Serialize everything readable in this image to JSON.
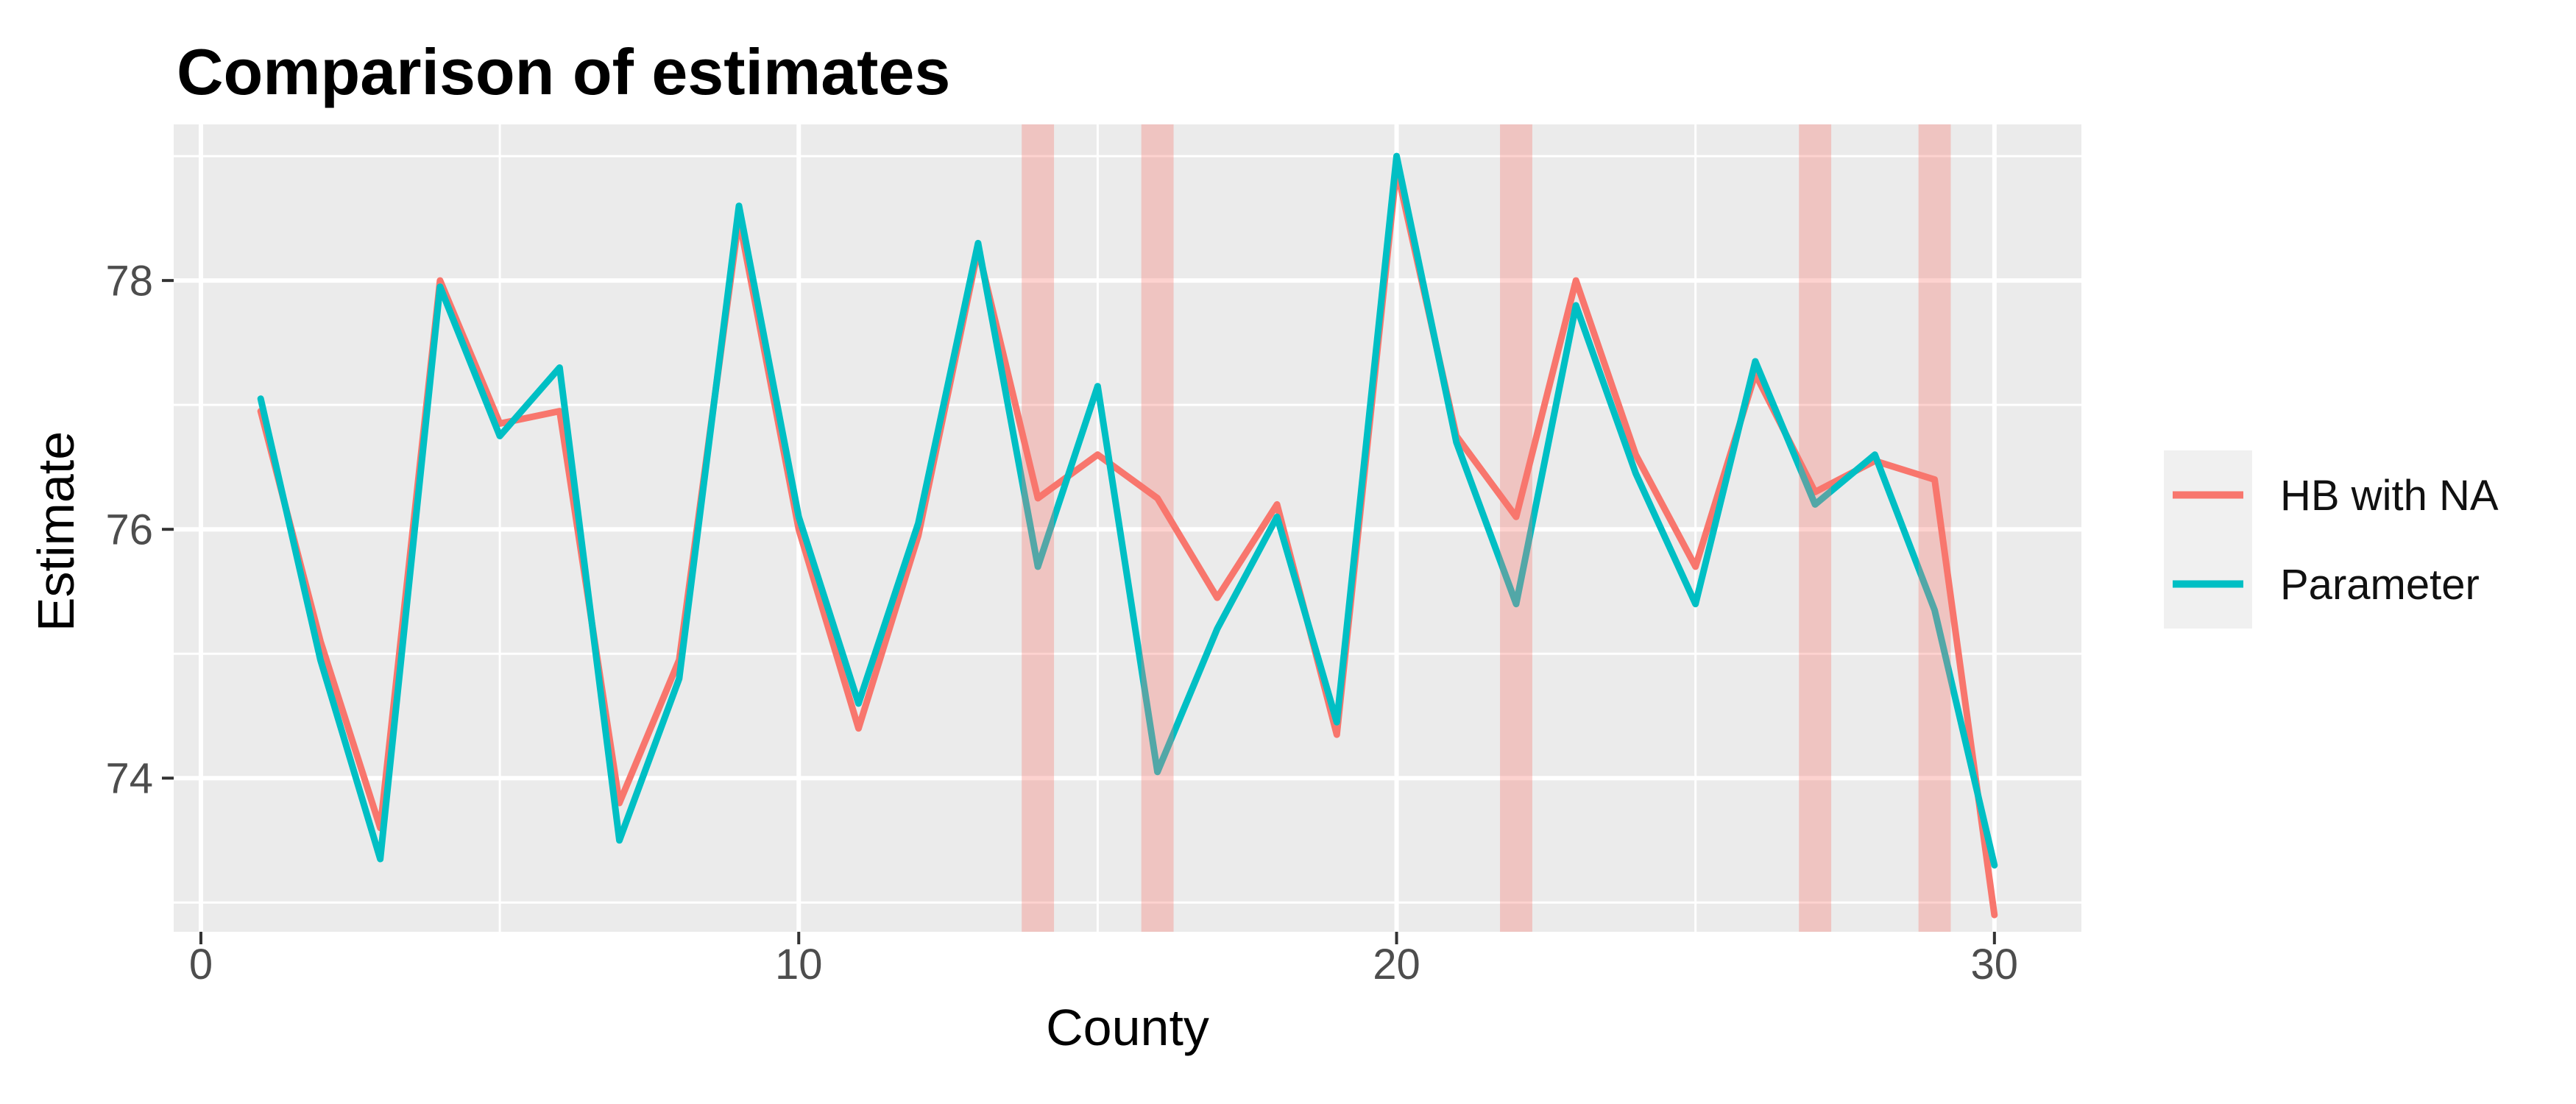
{
  "title": "Comparison of estimates",
  "style": {
    "figure_bg": "#FFFFFF",
    "panel_bg": "#EBEBEB",
    "grid_color": "#FFFFFF",
    "tick_mark_color": "#333333",
    "tick_label_color": "#4D4D4D",
    "text_color": "#000000",
    "legend_key_bg": "#F0F0F0",
    "hb_line_color": "#F8766D",
    "parameter_line_color": "#00BFC4",
    "na_band_color": "#F8766D",
    "na_band_alpha": 0.33
  },
  "chart_data": {
    "type": "line",
    "title": "Comparison of estimates",
    "xlabel": "County",
    "ylabel": "Estimate",
    "x": [
      1,
      2,
      3,
      4,
      5,
      6,
      7,
      8,
      9,
      10,
      11,
      12,
      13,
      14,
      15,
      16,
      17,
      18,
      19,
      20,
      21,
      22,
      23,
      24,
      25,
      26,
      27,
      28,
      29,
      30
    ],
    "series": [
      {
        "name": "HB with NA",
        "color": "#F8766D",
        "values": [
          76.95,
          75.1,
          73.6,
          78.0,
          76.85,
          76.95,
          73.8,
          74.95,
          78.5,
          76.0,
          74.4,
          75.95,
          78.25,
          76.25,
          76.6,
          76.25,
          75.45,
          76.2,
          74.35,
          78.9,
          76.75,
          76.1,
          78.0,
          76.6,
          75.7,
          77.25,
          76.3,
          76.55,
          76.4,
          72.9
        ]
      },
      {
        "name": "Parameter",
        "color": "#00BFC4",
        "values": [
          77.05,
          74.95,
          73.35,
          77.95,
          76.75,
          77.3,
          73.5,
          74.8,
          78.6,
          76.1,
          74.6,
          76.05,
          78.3,
          75.7,
          77.15,
          74.05,
          75.2,
          76.1,
          74.45,
          79.0,
          76.7,
          75.4,
          77.8,
          76.45,
          75.4,
          77.35,
          76.2,
          76.6,
          75.35,
          73.3
        ]
      }
    ],
    "na_highlighted_counties": [
      14,
      16,
      22,
      27,
      29
    ],
    "na_band_half_width_units": 0.27,
    "xlim": [
      -0.455,
      31.455
    ],
    "ylim": [
      72.765,
      79.255
    ],
    "x_ticks": [
      0,
      10,
      20,
      30
    ],
    "y_ticks": [
      74,
      76,
      78
    ],
    "x_gridlines_major": [
      0,
      10,
      20,
      30
    ],
    "x_gridlines_minor": [
      5,
      15,
      25
    ],
    "y_gridlines_major": [
      74,
      76,
      78
    ],
    "y_gridlines_minor": [
      73,
      75,
      77,
      79
    ],
    "grid": true,
    "legend_position": "right"
  },
  "legend": {
    "items": [
      {
        "label": "HB with NA",
        "color": "#F8766D"
      },
      {
        "label": "Parameter",
        "color": "#00BFC4"
      }
    ]
  }
}
